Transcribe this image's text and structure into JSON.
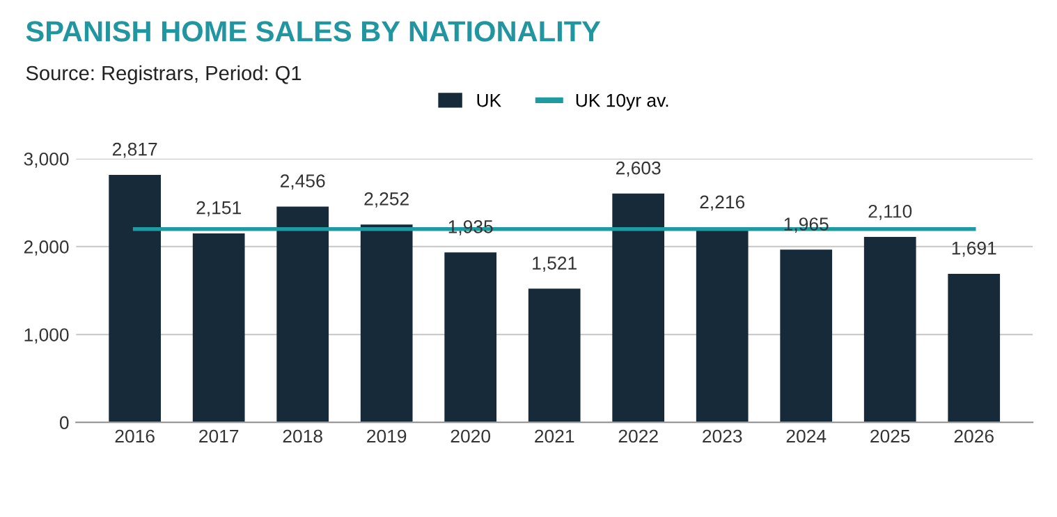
{
  "chart_data": {
    "type": "bar",
    "title": "SPANISH HOME SALES BY NATIONALITY",
    "subtitle": "Source: Registrars, Period: Q1",
    "categories": [
      "2016",
      "2017",
      "2018",
      "2019",
      "2020",
      "2021",
      "2022",
      "2023",
      "2024",
      "2025",
      "2026"
    ],
    "series": [
      {
        "name": "UK",
        "color": "#172a3a",
        "values": [
          2817,
          2151,
          2456,
          2252,
          1935,
          1521,
          2603,
          2216,
          1965,
          2110,
          1691
        ],
        "value_labels": [
          "2,817",
          "2,151",
          "2,456",
          "2,252",
          "1,935",
          "1,521",
          "2,603",
          "2,216",
          "1,965",
          "2,110",
          "1,691"
        ]
      },
      {
        "name": "UK 10yr av.",
        "type": "line",
        "color": "#1f9aa0",
        "values": [
          2200,
          2200,
          2200,
          2200,
          2200,
          2200,
          2200,
          2200,
          2200,
          2200,
          2200
        ]
      }
    ],
    "ylim": [
      0,
      3000
    ],
    "yticks": [
      {
        "value": 0,
        "label": "0"
      },
      {
        "value": 1000,
        "label": "1,000"
      },
      {
        "value": 2000,
        "label": "2,000"
      },
      {
        "value": 3000,
        "label": "3,000"
      }
    ],
    "grid": "y",
    "legend": "top"
  }
}
